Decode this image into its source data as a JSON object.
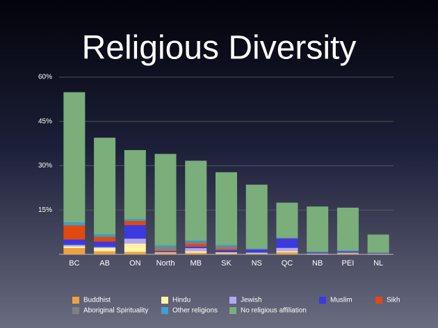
{
  "chart_data": {
    "type": "stacked-bar",
    "title": "Religious Diversity",
    "categories": [
      "BC",
      "AB",
      "ON",
      "North",
      "MB",
      "SK",
      "NS",
      "QC",
      "NB",
      "PEI",
      "NL"
    ],
    "series": [
      {
        "name": "Buddhist",
        "color": "#f0a040",
        "values": [
          2.1,
          1.0,
          0.8,
          0.4,
          0.5,
          0.3,
          0.2,
          0.7,
          0.1,
          0.4,
          0.1
        ]
      },
      {
        "name": "Hindu",
        "color": "#fff4a8",
        "values": [
          0.6,
          1.2,
          2.9,
          0.2,
          0.6,
          0.3,
          0.2,
          0.4,
          0.1,
          0.1,
          0.1
        ]
      },
      {
        "name": "Jewish",
        "color": "#b4aaf2",
        "values": [
          0.5,
          0.3,
          1.6,
          0.1,
          1.0,
          0.1,
          0.2,
          1.1,
          0.1,
          0.1,
          0.0
        ]
      },
      {
        "name": "Muslim",
        "color": "#3a3ae0",
        "values": [
          1.8,
          1.8,
          4.6,
          0.3,
          0.5,
          0.7,
          1.0,
          3.1,
          0.3,
          0.4,
          0.2
        ]
      },
      {
        "name": "Sikh",
        "color": "#e04a10",
        "values": [
          4.7,
          1.5,
          1.4,
          0.3,
          0.9,
          0.4,
          0.0,
          0.1,
          0.0,
          0.0,
          0.0
        ]
      },
      {
        "name": "Aboriginal Spirituality",
        "color": "#808080",
        "values": [
          0.3,
          0.4,
          0.1,
          1.2,
          0.8,
          1.0,
          0.1,
          0.0,
          0.1,
          0.0,
          0.1
        ]
      },
      {
        "name": "Other religions",
        "color": "#40a0d0",
        "values": [
          0.8,
          0.6,
          0.6,
          0.5,
          0.4,
          0.4,
          0.2,
          0.2,
          0.2,
          0.3,
          0.1
        ]
      },
      {
        "name": "No religious affiliation",
        "color": "#7aae7a",
        "values": [
          44.1,
          32.7,
          23.3,
          31.0,
          27.0,
          24.6,
          21.7,
          11.9,
          15.3,
          14.5,
          6.1
        ]
      }
    ],
    "ylim": [
      0,
      60
    ],
    "yticks": [
      {
        "value": 15,
        "label": "15%"
      },
      {
        "value": 30,
        "label": "30%"
      },
      {
        "value": 45,
        "label": "45%"
      },
      {
        "value": 60,
        "label": "60%"
      }
    ],
    "grid": true
  }
}
